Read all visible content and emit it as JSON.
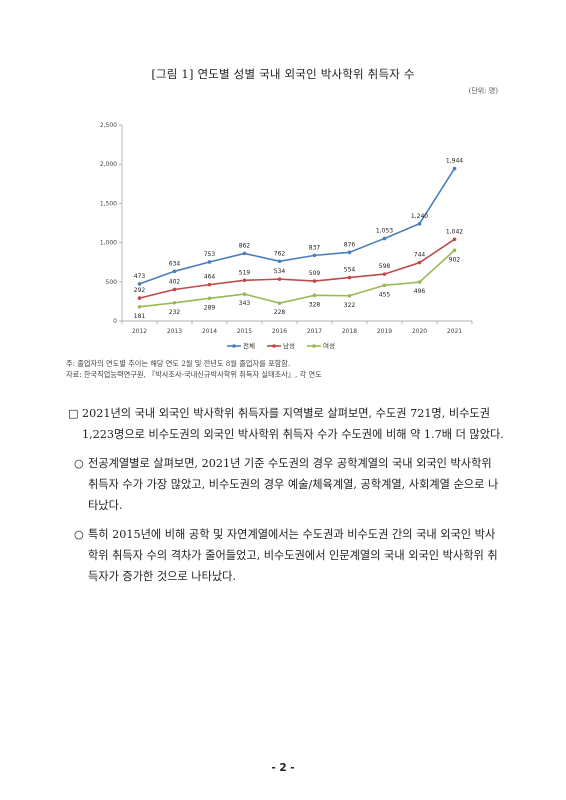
{
  "figure": {
    "title": "[그림 1] 연도별 성별 국내 외국인 박사학위 취득자 수",
    "unit": "(단위: 명)"
  },
  "chart_data": {
    "type": "line",
    "categories": [
      "2012",
      "2013",
      "2014",
      "2015",
      "2016",
      "2017",
      "2018",
      "2019",
      "2020",
      "2021"
    ],
    "ylim": [
      0,
      2500
    ],
    "yticks": [
      0,
      500,
      1000,
      1500,
      2000,
      2500
    ],
    "ytick_labels": [
      "0",
      "500",
      "1,000",
      "1,500",
      "2,000",
      "2,500"
    ],
    "grid": false,
    "legend_position": "bottom",
    "series": [
      {
        "name": "전체",
        "color": "#4a7ebb",
        "values": [
          473,
          634,
          753,
          862,
          762,
          837,
          876,
          1053,
          1240,
          1944
        ],
        "labels": [
          "473",
          "634",
          "753",
          "862",
          "762",
          "837",
          "876",
          "1,053",
          "1,240",
          "1,944"
        ]
      },
      {
        "name": "남성",
        "color": "#be4b48",
        "values": [
          292,
          402,
          464,
          519,
          534,
          509,
          554,
          598,
          744,
          1042
        ],
        "labels": [
          "292",
          "402",
          "464",
          "519",
          "534",
          "509",
          "554",
          "598",
          "744",
          "1,042"
        ]
      },
      {
        "name": "여성",
        "color": "#98b954",
        "values": [
          181,
          232,
          289,
          343,
          228,
          328,
          322,
          455,
          496,
          902
        ],
        "labels": [
          "181",
          "232",
          "289",
          "343",
          "228",
          "328",
          "322",
          "455",
          "496",
          "902"
        ]
      }
    ]
  },
  "notes": [
    "주: 졸업자의 연도별 추이는 해당 연도 2월 및 전년도 8월 졸업자를 포함함.",
    "자료: 한국직업능력연구원, 『박사조사-국내신규박사학위 취득자 실태조사』, 각 연도"
  ],
  "paragraphs": [
    {
      "marker": "□",
      "text": "2021년의 국내 외국인 박사학위 취득자를 지역별로 살펴보면, 수도권 721명, 비수도권 1,223명으로 비수도권의 외국인 박사학위 취득자 수가 수도권에 비해 약 1.7배 더 많았다."
    },
    {
      "marker": "○",
      "text": "전공계열별로 살펴보면, 2021년 기준 수도권의 경우 공학계열의 국내 외국인 박사학위 취득자 수가 가장 많았고, 비수도권의 경우 예술/체육계열, 공학계열, 사회계열 순으로 나타났다."
    },
    {
      "marker": "○",
      "text": "특히 2015년에 비해 공학 및 자연계열에서는 수도권과 비수도권 간의 국내 외국인 박사학위 취득자 수의 격차가 줄어들었고, 비수도권에서 인문계열의 국내 외국인 박사학위 취득자가 증가한 것으로 나타났다."
    }
  ],
  "page_number": "- 2 -"
}
